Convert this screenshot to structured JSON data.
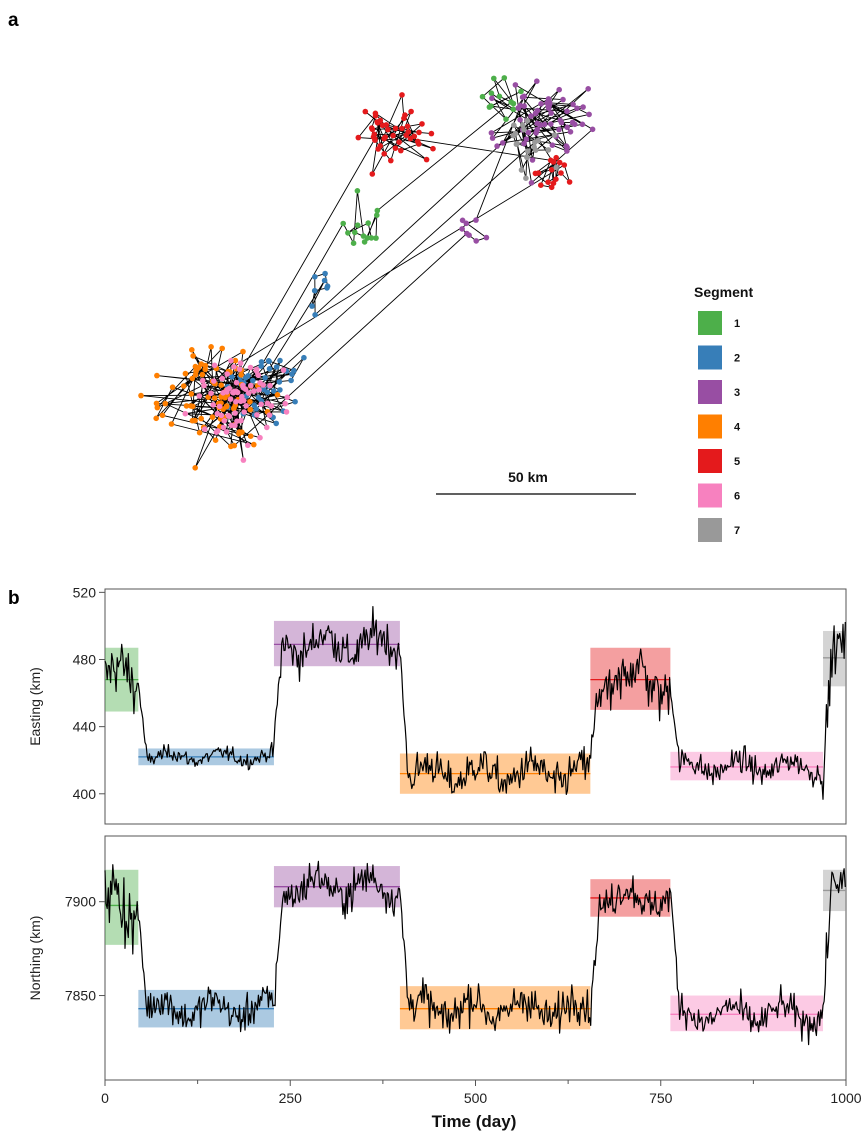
{
  "panel_labels": [
    "a",
    "b"
  ],
  "chart_data": [
    {
      "type": "scatter",
      "panel": "a",
      "title": "",
      "xlabel": "",
      "ylabel": "",
      "legend": {
        "title": "Segment",
        "placement": "right",
        "entries": [
          {
            "label": "1",
            "color": "#4daf4a"
          },
          {
            "label": "2",
            "color": "#377eb8"
          },
          {
            "label": "3",
            "color": "#984ea3"
          },
          {
            "label": "4",
            "color": "#ff7f00"
          },
          {
            "label": "5",
            "color": "#e41a1c"
          },
          {
            "label": "6",
            "color": "#f781bf"
          },
          {
            "label": "7",
            "color": "#999999"
          }
        ]
      },
      "scale_bar": {
        "label": "50 km",
        "length_km": 50
      },
      "track_color": "#000000"
    },
    {
      "type": "line",
      "panel": "b",
      "title": "",
      "xlabel": "Time (day)",
      "xlim": [
        0,
        1000
      ],
      "x_ticks": [
        "0",
        "250",
        "500",
        "750",
        "1000"
      ],
      "track_color": "#000000",
      "segments": [
        {
          "label": "1",
          "start": 0,
          "end": 45,
          "color": "#4daf4a",
          "easting_mean": 468,
          "easting_band": [
            449,
            487
          ],
          "northing_mean": 7898,
          "northing_band": [
            7877,
            7917
          ]
        },
        {
          "label": "2",
          "start": 45,
          "end": 228,
          "color": "#377eb8",
          "easting_mean": 422,
          "easting_band": [
            417,
            427
          ],
          "northing_mean": 7843,
          "northing_band": [
            7833,
            7853
          ]
        },
        {
          "label": "3",
          "start": 228,
          "end": 398,
          "color": "#984ea3",
          "easting_mean": 489,
          "easting_band": [
            476,
            503
          ],
          "northing_mean": 7908,
          "northing_band": [
            7897,
            7919
          ]
        },
        {
          "label": "4",
          "start": 398,
          "end": 655,
          "color": "#ff7f00",
          "easting_mean": 412,
          "easting_band": [
            400,
            424
          ],
          "northing_mean": 7843,
          "northing_band": [
            7832,
            7855
          ]
        },
        {
          "label": "5",
          "start": 655,
          "end": 763,
          "color": "#e41a1c",
          "easting_mean": 468,
          "easting_band": [
            450,
            487
          ],
          "northing_mean": 7902,
          "northing_band": [
            7892,
            7912
          ]
        },
        {
          "label": "6",
          "start": 763,
          "end": 969,
          "color": "#f781bf",
          "easting_mean": 416,
          "easting_band": [
            408,
            425
          ],
          "northing_mean": 7840,
          "northing_band": [
            7831,
            7850
          ]
        },
        {
          "label": "7",
          "start": 969,
          "end": 1000,
          "color": "#999999",
          "easting_mean": 481,
          "easting_band": [
            464,
            497
          ],
          "northing_mean": 7906,
          "northing_band": [
            7895,
            7917
          ]
        }
      ],
      "subplots": [
        {
          "name": "easting",
          "ylabel": "Easting (km)",
          "ylim": [
            382,
            522
          ],
          "y_ticks": [
            {
              "value": 400,
              "label": "400"
            },
            {
              "value": 440,
              "label": "440"
            },
            {
              "value": 480,
              "label": "480"
            },
            {
              "value": 520,
              "label": "520"
            }
          ]
        },
        {
          "name": "northing",
          "ylabel": "Northing (km)",
          "ylim": [
            7805,
            7935
          ],
          "y_ticks": [
            {
              "value": 7850,
              "label": "7850"
            },
            {
              "value": 7900,
              "label": "7900"
            }
          ]
        }
      ]
    }
  ]
}
